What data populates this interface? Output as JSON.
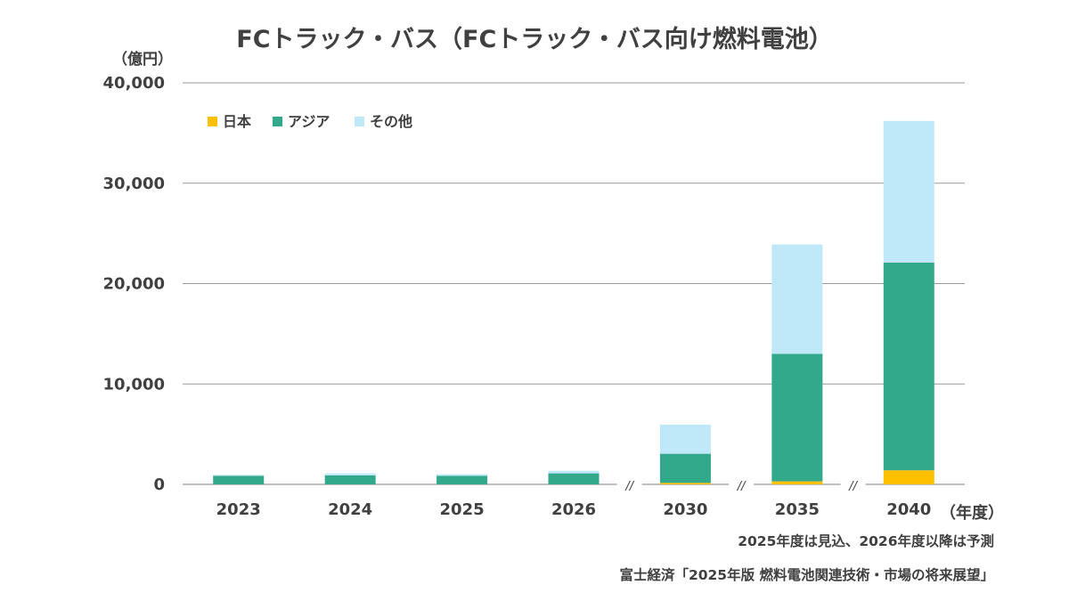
{
  "chart_data": {
    "type": "bar",
    "stacked": true,
    "title": "FCトラック・バス（FCトラック・バス向け燃料電池）",
    "ylabel": "（億円）",
    "xlabel": "（年度）",
    "categories": [
      "2023",
      "2024",
      "2025",
      "2026",
      "2030",
      "2035",
      "2040"
    ],
    "series": [
      {
        "name": "日本",
        "color": "#ffc000",
        "values": [
          0,
          0,
          0,
          0,
          150,
          300,
          1400
        ]
      },
      {
        "name": "アジア",
        "color": "#31a98a",
        "values": [
          850,
          900,
          850,
          1100,
          2900,
          12700,
          20700
        ]
      },
      {
        "name": "その他",
        "color": "#bfe8f8",
        "values": [
          100,
          200,
          150,
          250,
          2900,
          10900,
          14100
        ]
      }
    ],
    "ylim": [
      0,
      40000
    ],
    "yticks": [
      "0",
      "10,000",
      "20,000",
      "30,000",
      "40,000"
    ],
    "ytick_values": [
      0,
      10000,
      20000,
      30000,
      40000
    ],
    "axis_breaks_after": [
      "2026",
      "2030",
      "2035"
    ],
    "axis_break_label": "//",
    "grid": true,
    "legend_position": "top-left"
  },
  "notes": {
    "forecast": "2025年度は見込、2026年度以降は予測",
    "source": "富士経済「2025年版 燃料電池関連技術・市場の将来展望」"
  }
}
